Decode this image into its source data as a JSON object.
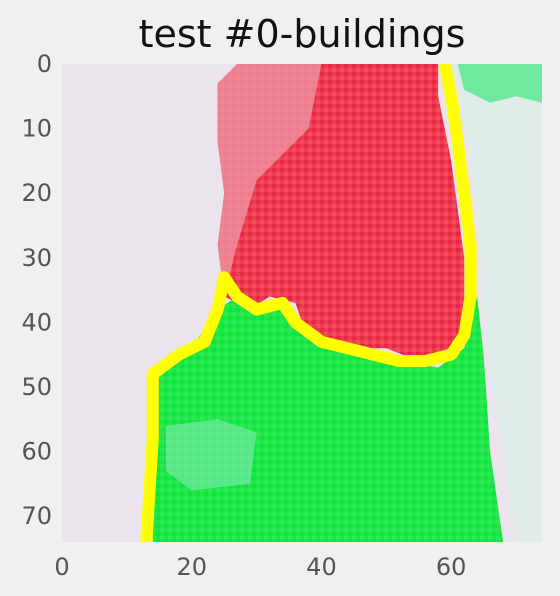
{
  "chart_data": {
    "type": "heatmap",
    "title": "test #0-buildings",
    "xlabel": "",
    "ylabel": "",
    "xlim": [
      0,
      74
    ],
    "ylim": [
      74,
      0
    ],
    "xticks": [
      0,
      20,
      40,
      60
    ],
    "yticks": [
      0,
      10,
      20,
      30,
      40,
      50,
      60,
      70
    ],
    "grid": false,
    "colors": {
      "background": "#ece4ec",
      "building_light": "#ef8f9f",
      "building_dark": "#ee2a40",
      "ground_green": "#1aea44",
      "ground_light": "#6fe9a0",
      "boundary": "#ffff00",
      "right_strip": "#e0ece9"
    },
    "regions": [
      {
        "name": "building",
        "color": "#ee4a5e",
        "polygon": [
          [
            24,
            3
          ],
          [
            27,
            0
          ],
          [
            58,
            0
          ],
          [
            58,
            5
          ],
          [
            60,
            15
          ],
          [
            62,
            30
          ],
          [
            62,
            40
          ],
          [
            61,
            45
          ],
          [
            55,
            46
          ],
          [
            50,
            44
          ],
          [
            44,
            44
          ],
          [
            40,
            42
          ],
          [
            37,
            40
          ],
          [
            36,
            37
          ],
          [
            32,
            36
          ],
          [
            29,
            38
          ],
          [
            25,
            36
          ],
          [
            24,
            28
          ],
          [
            25,
            20
          ],
          [
            24,
            12
          ]
        ]
      },
      {
        "name": "ground",
        "color": "#1aea44",
        "polygon": [
          [
            14,
            74
          ],
          [
            14,
            48
          ],
          [
            20,
            44
          ],
          [
            24,
            38
          ],
          [
            27,
            36
          ],
          [
            30,
            38
          ],
          [
            34,
            36
          ],
          [
            36,
            40
          ],
          [
            40,
            44
          ],
          [
            46,
            45
          ],
          [
            52,
            46
          ],
          [
            58,
            47
          ],
          [
            62,
            44
          ],
          [
            64,
            36
          ],
          [
            65,
            45
          ],
          [
            66,
            60
          ],
          [
            68,
            74
          ]
        ]
      },
      {
        "name": "upper-right",
        "color": "#e0ece9",
        "polygon": [
          [
            60,
            0
          ],
          [
            74,
            0
          ],
          [
            74,
            74
          ],
          [
            70,
            74
          ],
          [
            68,
            60
          ],
          [
            66,
            48
          ],
          [
            65,
            36
          ],
          [
            64,
            25
          ],
          [
            63,
            15
          ]
        ]
      }
    ],
    "boundary_line": [
      [
        13,
        74
      ],
      [
        14,
        58
      ],
      [
        14,
        48
      ],
      [
        18,
        45
      ],
      [
        22,
        43
      ],
      [
        24,
        38
      ],
      [
        25,
        33
      ],
      [
        27,
        36
      ],
      [
        30,
        38
      ],
      [
        34,
        37
      ],
      [
        36,
        40
      ],
      [
        40,
        43
      ],
      [
        44,
        44
      ],
      [
        48,
        45
      ],
      [
        52,
        46
      ],
      [
        56,
        46
      ],
      [
        60,
        45
      ],
      [
        62,
        42
      ],
      [
        63,
        36
      ],
      [
        63,
        28
      ],
      [
        62,
        20
      ],
      [
        61,
        12
      ],
      [
        60,
        5
      ],
      [
        59,
        0
      ]
    ]
  }
}
